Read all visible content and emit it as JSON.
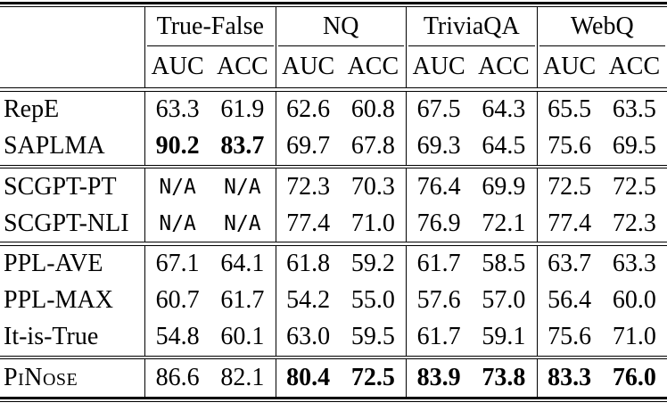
{
  "table": {
    "groups": [
      {
        "label": "True-False"
      },
      {
        "label": "NQ"
      },
      {
        "label": "TriviaQA"
      },
      {
        "label": "WebQ"
      }
    ],
    "subheaders": [
      "AUC",
      "ACC"
    ],
    "rows": [
      {
        "label": "RepE",
        "values": [
          "63.3",
          "61.9",
          "62.6",
          "60.8",
          "67.5",
          "64.3",
          "65.5",
          "63.5"
        ],
        "bold": [
          false,
          false,
          false,
          false,
          false,
          false,
          false,
          false
        ]
      },
      {
        "label": "SAPLMA",
        "values": [
          "90.2",
          "83.7",
          "69.7",
          "67.8",
          "69.3",
          "64.5",
          "75.6",
          "69.5"
        ],
        "bold": [
          true,
          true,
          false,
          false,
          false,
          false,
          false,
          false
        ]
      },
      {
        "label": "SCGPT-PT",
        "values": [
          "N/A",
          "N/A",
          "72.3",
          "70.3",
          "76.4",
          "69.9",
          "72.5",
          "72.5"
        ],
        "bold": [
          false,
          false,
          false,
          false,
          false,
          false,
          false,
          false
        ]
      },
      {
        "label": "SCGPT-NLI",
        "values": [
          "N/A",
          "N/A",
          "77.4",
          "71.0",
          "76.9",
          "72.1",
          "77.4",
          "72.3"
        ],
        "bold": [
          false,
          false,
          false,
          false,
          false,
          false,
          false,
          false
        ]
      },
      {
        "label": "PPL-AVE",
        "values": [
          "67.1",
          "64.1",
          "61.8",
          "59.2",
          "61.7",
          "58.5",
          "63.7",
          "63.3"
        ],
        "bold": [
          false,
          false,
          false,
          false,
          false,
          false,
          false,
          false
        ]
      },
      {
        "label": "PPL-MAX",
        "values": [
          "60.7",
          "61.7",
          "54.2",
          "55.0",
          "57.6",
          "57.0",
          "56.4",
          "60.0"
        ],
        "bold": [
          false,
          false,
          false,
          false,
          false,
          false,
          false,
          false
        ]
      },
      {
        "label": "It-is-True",
        "values": [
          "54.8",
          "60.1",
          "63.0",
          "59.5",
          "61.7",
          "59.1",
          "75.6",
          "71.0"
        ],
        "bold": [
          false,
          false,
          false,
          false,
          false,
          false,
          false,
          false
        ]
      },
      {
        "label": "PiNose",
        "values": [
          "86.6",
          "82.1",
          "80.4",
          "72.5",
          "83.9",
          "73.8",
          "83.3",
          "76.0"
        ],
        "bold": [
          false,
          false,
          true,
          true,
          true,
          true,
          true,
          true
        ]
      }
    ]
  },
  "colors": {
    "text": "#000000",
    "background": "#ffffff",
    "rule": "#000000"
  }
}
